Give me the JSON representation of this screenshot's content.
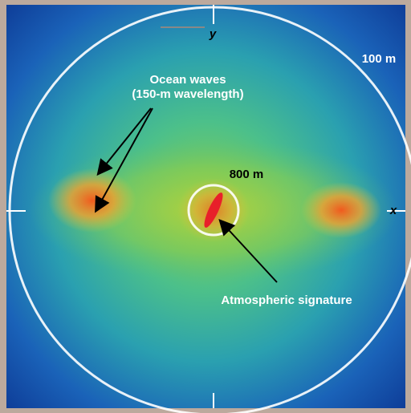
{
  "labels": {
    "y_axis": "y",
    "x_axis": "x",
    "outer_radius": "100 m",
    "inner_radius": "800 m",
    "ocean_waves": [
      "Ocean waves",
      "(150-m wavelength)"
    ],
    "atmospheric": "Atmospheric signature"
  }
}
